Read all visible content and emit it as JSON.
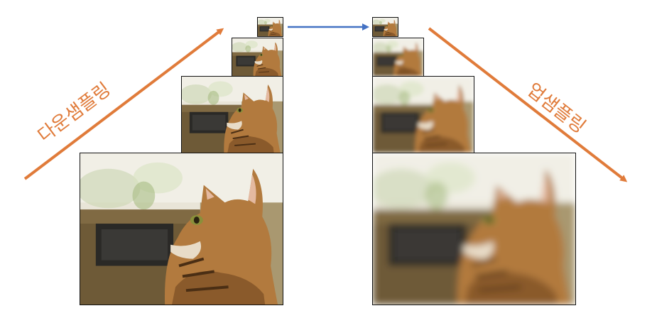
{
  "labels": {
    "downsampling": "다운샘플링",
    "upsampling": "업샘플링"
  },
  "colors": {
    "arrow_main": "#E07B3A",
    "arrow_link": "#4472C4",
    "frame_border": "#111111",
    "label_text": "#E07B3A"
  },
  "pyramids": {
    "downsampling_levels": 4,
    "upsampling_levels": 4
  }
}
